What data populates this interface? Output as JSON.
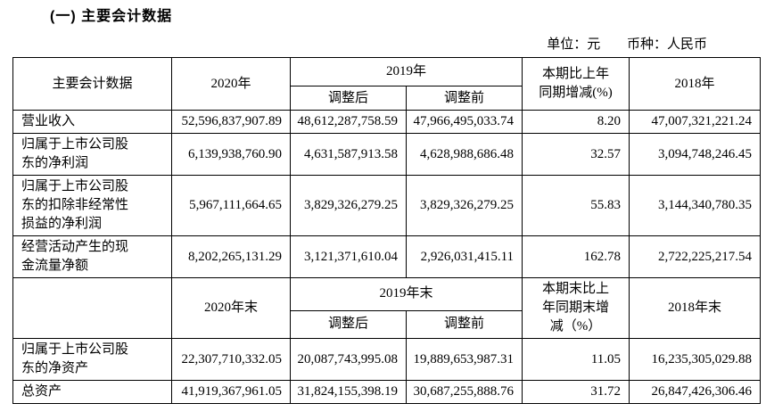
{
  "document": {
    "section_title": "(一) 主要会计数据",
    "unit_label": "单位：元",
    "currency_label": "币种：人民币"
  },
  "table": {
    "sections": [
      {
        "header": {
          "metric": "主要会计数据",
          "current_year": "2020年",
          "prior_year_group": "2019年",
          "adjusted": "调整后",
          "pre_adjustment": "调整前",
          "change": "本期比上年\n同期增减(%)",
          "earliest_year": "2018年"
        },
        "rows": [
          {
            "label": "营业收入",
            "values": [
              "52,596,837,907.89",
              "48,612,287,758.59",
              "47,966,495,033.74",
              "8.20",
              "47,007,321,221.24"
            ]
          },
          {
            "label": "归属于上市公司股\n东的净利润",
            "values": [
              "6,139,938,760.90",
              "4,631,587,913.58",
              "4,628,988,686.48",
              "32.57",
              "3,094,748,246.45"
            ]
          },
          {
            "label": "归属于上市公司股\n东的扣除非经常性\n损益的净利润",
            "values": [
              "5,967,111,664.65",
              "3,829,326,279.25",
              "3,829,326,279.25",
              "55.83",
              "3,144,340,780.35"
            ]
          },
          {
            "label": "经营活动产生的现\n金流量净额",
            "values": [
              "8,202,265,131.29",
              "3,121,371,610.04",
              "2,926,031,415.11",
              "162.78",
              "2,722,225,217.54"
            ]
          }
        ]
      },
      {
        "header": {
          "metric": "",
          "current_year": "2020年末",
          "prior_year_group": "2019年末",
          "adjusted": "调整后",
          "pre_adjustment": "调整前",
          "change": "本期末比上\n年同期末增\n减（%）",
          "earliest_year": "2018年末"
        },
        "rows": [
          {
            "label": "归属于上市公司股\n东的净资产",
            "values": [
              "22,307,710,332.05",
              "20,087,743,995.08",
              "19,889,653,987.31",
              "11.05",
              "16,235,305,029.88"
            ]
          },
          {
            "label": "总资产",
            "values": [
              "41,919,367,961.05",
              "31,824,155,398.19",
              "30,687,255,888.76",
              "31.72",
              "26,847,426,306.46"
            ]
          }
        ]
      }
    ]
  }
}
